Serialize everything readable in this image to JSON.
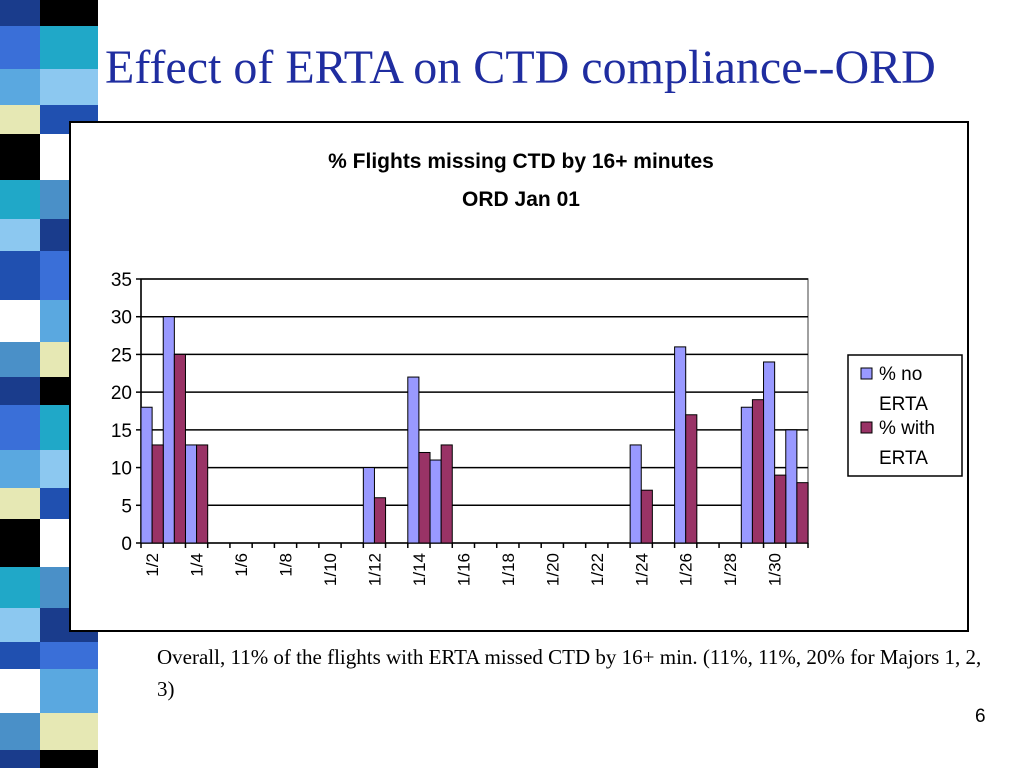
{
  "slide": {
    "title": "Effect of ERTA on CTD compliance--ORD",
    "caption": "Overall, 11% of the flights with ERTA missed CTD by 16+ min.  (11%, 11%, 20% for Majors 1, 2, 3)",
    "page_number": "6"
  },
  "colors": {
    "title": "#1f2da0",
    "series_no_erta": "#9999ff",
    "series_with_erta": "#993366"
  },
  "chart_data": {
    "type": "bar",
    "title": "% Flights missing CTD by 16+ minutes",
    "subtitle": "ORD Jan 01",
    "xlabel": "",
    "ylabel": "",
    "ylim": [
      0,
      35
    ],
    "yticks": [
      0,
      5,
      10,
      15,
      20,
      25,
      30,
      35
    ],
    "grid": true,
    "legend_position": "right",
    "categories": [
      "1/2",
      "1/3",
      "1/4",
      "1/5",
      "1/6",
      "1/7",
      "1/8",
      "1/9",
      "1/10",
      "1/11",
      "1/12",
      "1/13",
      "1/14",
      "1/15",
      "1/16",
      "1/17",
      "1/18",
      "1/19",
      "1/20",
      "1/21",
      "1/22",
      "1/23",
      "1/24",
      "1/25",
      "1/26",
      "1/27",
      "1/28",
      "1/29",
      "1/30",
      "1/31"
    ],
    "tick_labels": [
      "1/2",
      "1/4",
      "1/6",
      "1/8",
      "1/10",
      "1/12",
      "1/14",
      "1/16",
      "1/18",
      "1/20",
      "1/22",
      "1/24",
      "1/26",
      "1/28",
      "1/30"
    ],
    "series": [
      {
        "name": "% no ERTA",
        "color": "#9999ff",
        "values": [
          18,
          30,
          13,
          0,
          0,
          0,
          0,
          0,
          0,
          0,
          10,
          0,
          22,
          11,
          0,
          0,
          0,
          0,
          0,
          0,
          0,
          0,
          13,
          0,
          26,
          0,
          0,
          18,
          24,
          15
        ]
      },
      {
        "name": "% with ERTA",
        "color": "#993366",
        "values": [
          13,
          25,
          13,
          0,
          0,
          0,
          0,
          0,
          0,
          0,
          6,
          0,
          12,
          13,
          0,
          0,
          0,
          0,
          0,
          0,
          0,
          0,
          7,
          0,
          17,
          0,
          0,
          19,
          9,
          8
        ]
      }
    ]
  }
}
